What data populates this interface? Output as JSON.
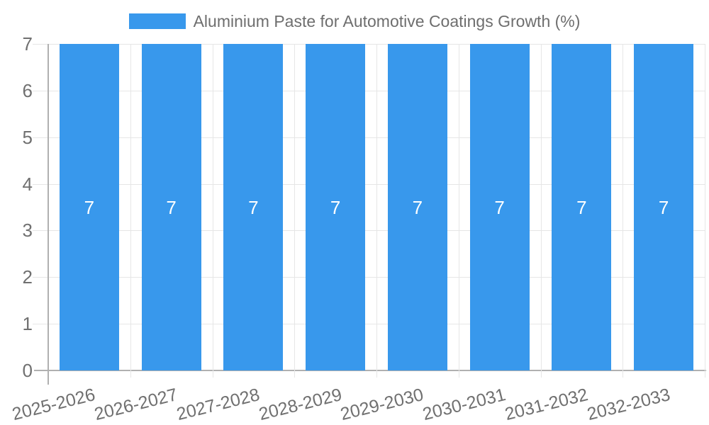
{
  "legend": {
    "label": "Aluminium Paste for Automotive Coatings Growth (%)",
    "swatch_color": "#3898ec",
    "position": "top"
  },
  "chart_data": {
    "type": "bar",
    "title": "Aluminium Paste for Automotive Coatings Growth (%)",
    "categories": [
      "2025-2026",
      "2026-2027",
      "2027-2028",
      "2028-2029",
      "2029-2030",
      "2030-2031",
      "2031-2032",
      "2032-2033"
    ],
    "series": [
      {
        "name": "Aluminium Paste for Automotive Coatings Growth (%)",
        "color": "#3898ec",
        "values": [
          7,
          7,
          7,
          7,
          7,
          7,
          7,
          7
        ]
      }
    ],
    "xlabel": "",
    "ylabel": "",
    "ylim": [
      0,
      7
    ],
    "yticks": [
      0,
      1,
      2,
      3,
      4,
      5,
      6,
      7
    ],
    "grid": true,
    "legend_position": "top",
    "bar_value_labels_shown": true,
    "colors": {
      "bar": "#3898ec",
      "grid_line": "#e6e6e6",
      "axis_line": "#b0b0b0",
      "tick_text": "#707070",
      "legend_text": "#6e6e6e",
      "value_label_text": "#ffffff",
      "background": "#ffffff"
    }
  }
}
